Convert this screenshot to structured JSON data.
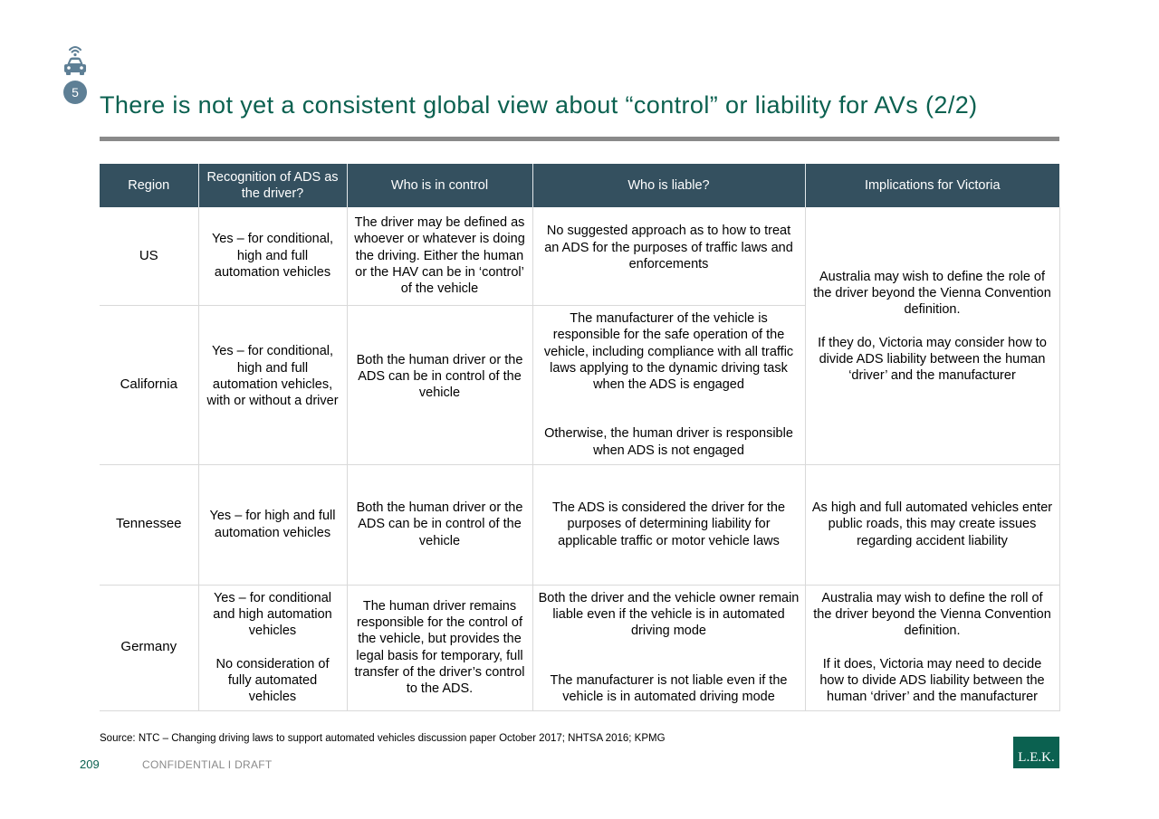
{
  "header": {
    "section_number": "5",
    "title": "There is not yet a consistent global view about “control” or liability for AVs (2/2)",
    "icon": "connected-car-icon"
  },
  "table": {
    "headers": [
      "Region",
      "Recognition of ADS as the driver?",
      "Who is in control",
      "Who is liable?",
      "Implications for Victoria"
    ],
    "rows": [
      {
        "region": "US",
        "recognition": "Yes – for conditional, high and full automation vehicles",
        "control": "The driver may be defined as whoever or whatever is doing the driving. Either the human or the HAV can be in ‘control’ of the vehicle",
        "liable": "No suggested approach as to how to treat an ADS for the purposes of traffic laws and enforcements"
      },
      {
        "region": "California",
        "recognition": "Yes – for conditional, high and full automation vehicles, with or without a driver",
        "control": "Both the human driver or the ADS can be in control of the vehicle",
        "liable_1": "The manufacturer of the vehicle is responsible for the safe operation of the vehicle, including compliance with all traffic laws applying to the dynamic driving task when the ADS is engaged",
        "liable_2": "Otherwise, the human driver is responsible when ADS is not engaged"
      },
      {
        "region": "Tennessee",
        "recognition": "Yes – for high and full automation vehicles",
        "control": "Both the human driver or the ADS can be in control of the vehicle",
        "liable": "The ADS is considered the driver for the purposes of determining liability for applicable traffic or motor vehicle laws",
        "implications": "As high and full automated vehicles enter public roads, this may create issues regarding accident liability"
      },
      {
        "region": "Germany",
        "recognition_1": "Yes – for conditional and high automation vehicles",
        "recognition_2": "No consideration of fully automated vehicles",
        "control": "The human driver remains responsible for the control of the vehicle, but provides the legal basis for temporary, full transfer of the driver’s control to the ADS.",
        "liable_1": "Both the driver and the vehicle owner remain liable even if the vehicle is in automated driving mode",
        "liable_2": "The manufacturer is not liable even if the vehicle is in automated driving mode",
        "implications_1": "Australia may wish to define the roll of the driver beyond the Vienna Convention definition.",
        "implications_2": "If it does, Victoria may need to decide how to divide ADS liability between the human ‘driver’ and the manufacturer"
      }
    ],
    "shared_implications_1": "Australia may wish to define the role of the driver beyond the Vienna Convention definition.",
    "shared_implications_2": "If they do, Victoria may consider how to divide ADS liability between the human ‘driver’ and the manufacturer"
  },
  "footer": {
    "source": "Source: NTC – Changing driving laws to support automated vehicles discussion paper October 2017; NHTSA 2016; KPMG",
    "page_number": "209",
    "confidential": "CONFIDENTIAL  I  DRAFT",
    "logo_text": "L.E.K."
  },
  "colors": {
    "title": "#0b6150",
    "header_bg": "#34505f",
    "rule": "#8a8a8a",
    "badge": "#5e7f95",
    "logo_bg": "#0b6150"
  }
}
